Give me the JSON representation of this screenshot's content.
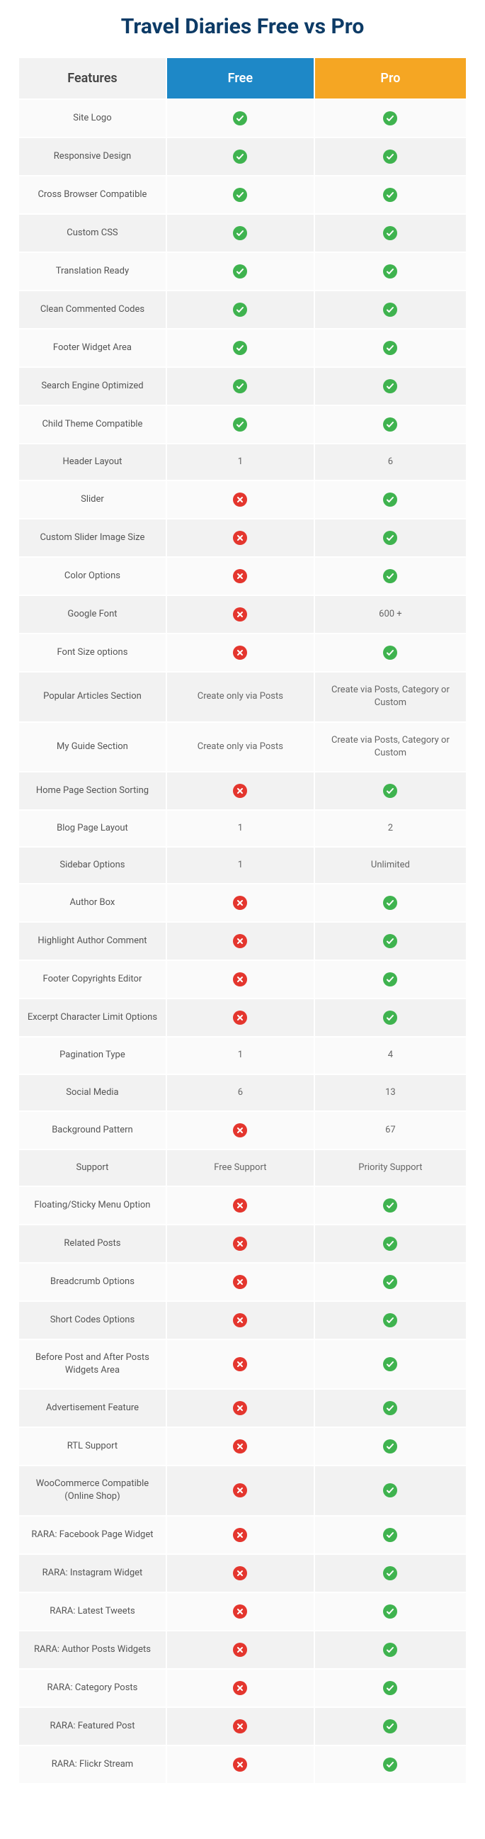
{
  "title": "Travel Diaries Free vs Pro",
  "title_color": "#0d3b66",
  "headers": {
    "features": "Features",
    "free": "Free",
    "pro": "Pro"
  },
  "colors": {
    "free_header_bg": "#1e88c7",
    "pro_header_bg": "#f5a623",
    "check_bg": "#3fb34f",
    "cross_bg": "#e4362e"
  },
  "rows": [
    {
      "feature": "Site Logo",
      "free": "check",
      "pro": "check"
    },
    {
      "feature": "Responsive Design",
      "free": "check",
      "pro": "check"
    },
    {
      "feature": "Cross Browser Compatible",
      "free": "check",
      "pro": "check"
    },
    {
      "feature": "Custom CSS",
      "free": "check",
      "pro": "check"
    },
    {
      "feature": "Translation Ready",
      "free": "check",
      "pro": "check"
    },
    {
      "feature": "Clean Commented Codes",
      "free": "check",
      "pro": "check"
    },
    {
      "feature": "Footer Widget Area",
      "free": "check",
      "pro": "check"
    },
    {
      "feature": "Search Engine Optimized",
      "free": "check",
      "pro": "check"
    },
    {
      "feature": "Child Theme Compatible",
      "free": "check",
      "pro": "check"
    },
    {
      "feature": "Header Layout",
      "free": "1",
      "pro": "6"
    },
    {
      "feature": "Slider",
      "free": "cross",
      "pro": "check"
    },
    {
      "feature": "Custom Slider Image Size",
      "free": "cross",
      "pro": "check"
    },
    {
      "feature": "Color Options",
      "free": "cross",
      "pro": "check"
    },
    {
      "feature": "Google Font",
      "free": "cross",
      "pro": "600 +"
    },
    {
      "feature": "Font Size options",
      "free": "cross",
      "pro": "check"
    },
    {
      "feature": "Popular Articles Section",
      "free": "Create only via Posts",
      "pro": "Create via Posts, Category or Custom"
    },
    {
      "feature": "My Guide Section",
      "free": "Create only via Posts",
      "pro": "Create via Posts, Category or Custom"
    },
    {
      "feature": "Home Page Section Sorting",
      "free": "cross",
      "pro": "check"
    },
    {
      "feature": "Blog Page Layout",
      "free": "1",
      "pro": "2"
    },
    {
      "feature": "Sidebar Options",
      "free": "1",
      "pro": "Unlimited"
    },
    {
      "feature": "Author Box",
      "free": "cross",
      "pro": "check"
    },
    {
      "feature": "Highlight Author Comment",
      "free": "cross",
      "pro": "check"
    },
    {
      "feature": "Footer Copyrights Editor",
      "free": "cross",
      "pro": "check"
    },
    {
      "feature": "Excerpt Character Limit Options",
      "free": "cross",
      "pro": "check"
    },
    {
      "feature": "Pagination Type",
      "free": "1",
      "pro": "4"
    },
    {
      "feature": "Social Media",
      "free": "6",
      "pro": "13"
    },
    {
      "feature": "Background Pattern",
      "free": "cross",
      "pro": "67"
    },
    {
      "feature": "Support",
      "free": "Free Support",
      "pro": "Priority Support"
    },
    {
      "feature": "Floating/Sticky Menu Option",
      "free": "cross",
      "pro": "check"
    },
    {
      "feature": "Related Posts",
      "free": "cross",
      "pro": "check"
    },
    {
      "feature": "Breadcrumb Options",
      "free": "cross",
      "pro": "check"
    },
    {
      "feature": "Short Codes Options",
      "free": "cross",
      "pro": "check"
    },
    {
      "feature": "Before Post and After Posts Widgets Area",
      "free": "cross",
      "pro": "check"
    },
    {
      "feature": "Advertisement Feature",
      "free": "cross",
      "pro": "check"
    },
    {
      "feature": "RTL Support",
      "free": "cross",
      "pro": "check"
    },
    {
      "feature": "WooCommerce Compatible (Online Shop)",
      "free": "cross",
      "pro": "check"
    },
    {
      "feature": "RARA: Facebook Page Widget",
      "free": "cross",
      "pro": "check"
    },
    {
      "feature": "RARA: Instagram Widget",
      "free": "cross",
      "pro": "check"
    },
    {
      "feature": "RARA: Latest Tweets",
      "free": "cross",
      "pro": "check"
    },
    {
      "feature": "RARA: Author Posts Widgets",
      "free": "cross",
      "pro": "check"
    },
    {
      "feature": "RARA: Category Posts",
      "free": "cross",
      "pro": "check"
    },
    {
      "feature": "RARA: Featured Post",
      "free": "cross",
      "pro": "check"
    },
    {
      "feature": "RARA: Flickr Stream",
      "free": "cross",
      "pro": "check"
    }
  ]
}
